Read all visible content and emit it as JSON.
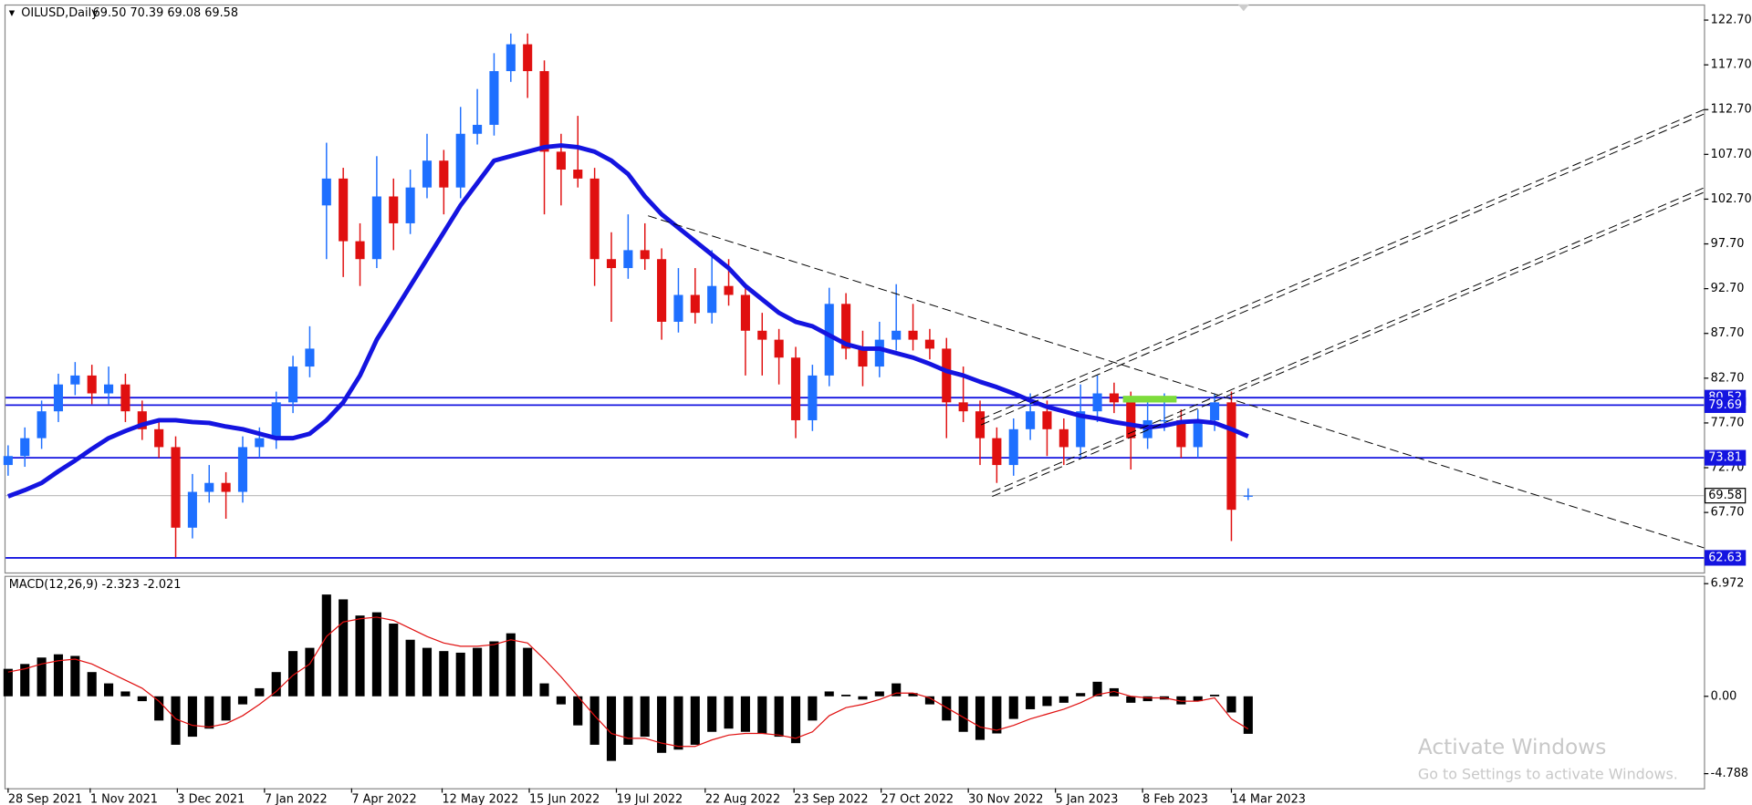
{
  "chart_data": {
    "type": "candlestick",
    "title": "OILUSD,Daily",
    "subtitle": "69.50 70.39 69.08 69.58",
    "up_color": "#1e6fff",
    "down_color": "#e01010",
    "ma_color": "#1414e0",
    "xlim": [
      -0.15,
      101.2
    ],
    "xticks": [
      {
        "value": 0,
        "label": "28 Sep 2021"
      },
      {
        "value": 4.9,
        "label": "1 Nov 2021"
      },
      {
        "value": 10.1,
        "label": "3 Dec 2021"
      },
      {
        "value": 15.3,
        "label": "7 Jan 2022"
      },
      {
        "value": 20.5,
        "label": "7 Apr 2022"
      },
      {
        "value": 25.9,
        "label": "12 May 2022"
      },
      {
        "value": 31.1,
        "label": "15 Jun 2022"
      },
      {
        "value": 36.3,
        "label": "19 Jul 2022"
      },
      {
        "value": 41.6,
        "label": "22 Aug 2022"
      },
      {
        "value": 46.9,
        "label": "23 Sep 2022"
      },
      {
        "value": 52.1,
        "label": "27 Oct 2022"
      },
      {
        "value": 57.3,
        "label": "30 Nov 2022"
      },
      {
        "value": 62.5,
        "label": "5 Jan 2023"
      },
      {
        "value": 67.7,
        "label": "8 Feb 2023"
      },
      {
        "value": 73,
        "label": "14 Mar 2023"
      }
    ],
    "ylim": [
      61.0,
      124.32
    ],
    "yticks": [
      {
        "value": 122.7,
        "label": "122.70"
      },
      {
        "value": 117.7,
        "label": "117.70"
      },
      {
        "value": 112.7,
        "label": "112.70"
      },
      {
        "value": 107.7,
        "label": "107.70"
      },
      {
        "value": 102.7,
        "label": "102.70"
      },
      {
        "value": 97.7,
        "label": "97.70"
      },
      {
        "value": 92.7,
        "label": "92.70"
      },
      {
        "value": 87.7,
        "label": "87.70"
      },
      {
        "value": 82.7,
        "label": "82.70"
      },
      {
        "value": 77.7,
        "label": "77.70"
      },
      {
        "value": 72.7,
        "label": "72.70"
      },
      {
        "value": 67.7,
        "label": "67.70"
      }
    ],
    "levels": [
      {
        "value": 80.52,
        "label": "80.52",
        "color": "#1414e0"
      },
      {
        "value": 79.69,
        "label": "79.69",
        "color": "#1414e0"
      },
      {
        "value": 73.81,
        "label": "73.81",
        "color": "#1414e0"
      },
      {
        "value": 69.58,
        "label": "69.58",
        "color": "#c0c0c0"
      },
      {
        "value": 62.63,
        "label": "62.63",
        "color": "#1414e0"
      }
    ],
    "candles": [
      [
        73,
        75.2,
        71.8,
        74
      ],
      [
        74,
        77.2,
        72.8,
        76
      ],
      [
        76,
        80.2,
        74.8,
        79
      ],
      [
        79,
        83.2,
        77.8,
        82
      ],
      [
        82,
        84.5,
        80.8,
        83
      ],
      [
        83,
        84.2,
        79.8,
        81
      ],
      [
        81,
        84,
        79.8,
        82
      ],
      [
        82,
        83.2,
        77.8,
        79
      ],
      [
        79,
        80.2,
        75.8,
        77
      ],
      [
        77,
        78.2,
        73.8,
        75
      ],
      [
        75,
        76.2,
        62.7,
        66
      ],
      [
        66,
        72,
        64.8,
        70
      ],
      [
        70,
        73,
        68.8,
        71
      ],
      [
        71,
        72.2,
        67,
        70
      ],
      [
        70,
        76.2,
        68.8,
        75
      ],
      [
        75,
        77.2,
        73.8,
        76
      ],
      [
        76,
        81.2,
        74.8,
        80
      ],
      [
        80,
        85.2,
        78.8,
        84
      ],
      [
        84,
        88.5,
        82.8,
        86
      ],
      [
        102,
        109,
        96,
        105
      ],
      [
        105,
        106.2,
        94,
        98
      ],
      [
        98,
        100,
        93,
        96
      ],
      [
        96,
        107.5,
        95,
        103
      ],
      [
        103,
        105,
        97,
        100
      ],
      [
        100,
        106,
        98.8,
        104
      ],
      [
        104,
        110,
        102.8,
        107
      ],
      [
        107,
        108.2,
        101,
        104
      ],
      [
        104,
        113,
        102.8,
        110
      ],
      [
        110,
        115,
        108.8,
        111
      ],
      [
        111,
        119,
        109.8,
        117
      ],
      [
        117,
        121.2,
        115.8,
        120
      ],
      [
        120,
        121.2,
        114,
        117
      ],
      [
        117,
        118.2,
        101,
        108
      ],
      [
        108,
        110,
        102,
        106
      ],
      [
        106,
        112,
        104,
        105
      ],
      [
        105,
        106.2,
        93,
        96
      ],
      [
        96,
        99,
        89,
        95
      ],
      [
        95,
        101,
        93.8,
        97
      ],
      [
        97,
        100,
        94.8,
        96
      ],
      [
        96,
        97.2,
        87,
        89
      ],
      [
        89,
        95,
        87.8,
        92
      ],
      [
        92,
        95,
        88.8,
        90
      ],
      [
        90,
        97,
        88.8,
        93
      ],
      [
        93,
        96,
        90.8,
        92
      ],
      [
        92,
        93.2,
        83,
        88
      ],
      [
        88,
        90,
        83,
        87
      ],
      [
        87,
        88.2,
        82,
        85
      ],
      [
        85,
        86.2,
        76,
        78
      ],
      [
        78,
        84.2,
        76.8,
        83
      ],
      [
        83,
        92.8,
        81.8,
        91
      ],
      [
        91,
        92.2,
        84.8,
        86
      ],
      [
        86,
        88,
        81.8,
        84
      ],
      [
        84,
        89,
        82.8,
        87
      ],
      [
        87,
        93.2,
        85.8,
        88
      ],
      [
        88,
        91,
        85.8,
        87
      ],
      [
        87,
        88.2,
        84.8,
        86
      ],
      [
        86,
        87.2,
        76,
        80
      ],
      [
        80,
        84,
        77.8,
        79
      ],
      [
        79,
        80.2,
        73,
        76
      ],
      [
        76,
        77.2,
        71,
        73
      ],
      [
        73,
        78.2,
        71.8,
        77
      ],
      [
        77,
        81,
        75.8,
        79
      ],
      [
        79,
        80.2,
        74,
        77
      ],
      [
        77,
        78.2,
        73,
        75
      ],
      [
        75,
        82,
        73.8,
        79
      ],
      [
        79,
        83,
        77.8,
        81
      ],
      [
        81,
        82.2,
        78.8,
        80
      ],
      [
        80,
        81.2,
        72.5,
        76
      ],
      [
        76,
        80,
        74.8,
        78
      ],
      [
        78,
        81,
        76.8,
        78
      ],
      [
        78,
        79.2,
        73.8,
        75
      ],
      [
        75,
        79.2,
        73.8,
        78
      ],
      [
        78,
        81,
        76.8,
        80
      ],
      [
        80,
        81.2,
        64.5,
        68
      ],
      [
        69.5,
        70.39,
        69.08,
        69.58
      ]
    ],
    "ma_values": [
      69.5,
      70.2,
      71,
      72.3,
      73.5,
      74.8,
      76,
      76.8,
      77.5,
      78,
      78,
      77.8,
      77.7,
      77.3,
      77,
      76.5,
      76,
      76,
      76.5,
      78,
      80,
      83,
      87,
      90,
      93,
      96,
      99,
      102,
      104.5,
      107,
      107.5,
      108,
      108.5,
      108.7,
      108.5,
      108,
      107,
      105.5,
      103,
      101,
      99.5,
      98,
      96.5,
      95,
      93,
      91.5,
      90,
      89,
      88.5,
      87.5,
      86.5,
      86,
      86,
      85.5,
      85,
      84.3,
      83.5,
      83,
      82.3,
      81.7,
      81,
      80.2,
      79.5,
      79,
      78.5,
      78.2,
      77.8,
      77.5,
      77.2,
      77.4,
      77.8,
      77.9,
      77.7,
      77,
      76.2
    ],
    "macd": {
      "label": "MACD(12,26,9) -2.323 -2.021",
      "hist_color": "#000000",
      "signal_color": "#e01010",
      "ylim": [
        -5.69,
        7.39
      ],
      "yticks": [
        6.972,
        {
          "value": 0,
          "label": "0.00"
        },
        -4.788
      ],
      "histogram": [
        1.7,
        2.0,
        2.4,
        2.6,
        2.5,
        1.5,
        0.8,
        0.3,
        -0.3,
        -1.5,
        -3.0,
        -2.5,
        -2.0,
        -1.5,
        -0.5,
        0.5,
        1.5,
        2.8,
        3.0,
        6.3,
        6.0,
        5.0,
        5.2,
        4.5,
        3.5,
        3.0,
        2.8,
        2.7,
        3.0,
        3.4,
        3.9,
        3.0,
        0.8,
        -0.5,
        -1.8,
        -3.0,
        -4.0,
        -3.0,
        -2.5,
        -3.5,
        -3.3,
        -3.0,
        -2.2,
        -2.0,
        -2.2,
        -2.3,
        -2.5,
        -2.9,
        -1.5,
        0.3,
        0.1,
        -0.2,
        0.3,
        0.8,
        0.2,
        -0.5,
        -1.5,
        -2.2,
        -2.7,
        -2.3,
        -1.4,
        -0.8,
        -0.6,
        -0.4,
        0.2,
        0.9,
        0.5,
        -0.4,
        -0.3,
        -0.2,
        -0.5,
        -0.3,
        0.1,
        -1.0,
        -2.323
      ],
      "signal": [
        1.5,
        1.7,
        2.0,
        2.2,
        2.3,
        2.0,
        1.5,
        1.0,
        0.5,
        -0.3,
        -1.4,
        -1.8,
        -1.9,
        -1.7,
        -1.2,
        -0.5,
        0.3,
        1.3,
        2.0,
        3.7,
        4.6,
        4.8,
        4.9,
        4.7,
        4.2,
        3.7,
        3.3,
        3.1,
        3.1,
        3.2,
        3.5,
        3.3,
        2.3,
        1.2,
        0.0,
        -1.2,
        -2.3,
        -2.6,
        -2.6,
        -2.9,
        -3.1,
        -3.1,
        -2.7,
        -2.4,
        -2.3,
        -2.3,
        -2.4,
        -2.6,
        -2.2,
        -1.2,
        -0.7,
        -0.5,
        -0.2,
        0.2,
        0.2,
        -0.1,
        -0.7,
        -1.3,
        -1.9,
        -2.1,
        -1.8,
        -1.4,
        -1.1,
        -0.8,
        -0.4,
        0.1,
        0.3,
        0.0,
        -0.1,
        -0.1,
        -0.3,
        -0.3,
        -0.1,
        -1.4,
        -2.021
      ]
    },
    "watermark": {
      "title": "Activate Windows",
      "subtitle": "Go to Settings to activate Windows."
    }
  }
}
